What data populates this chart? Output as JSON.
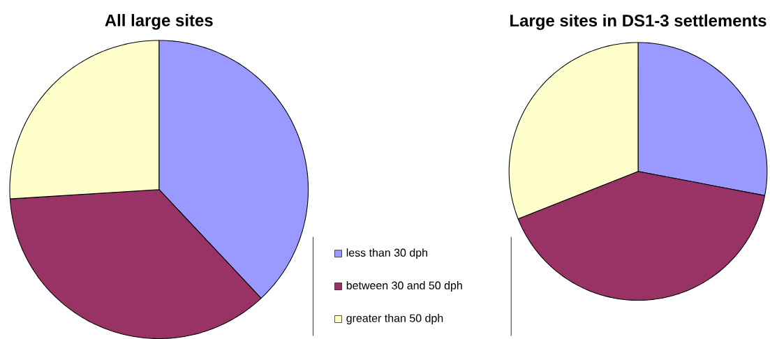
{
  "chart_data": [
    {
      "type": "pie",
      "title": "All large sites",
      "categories": [
        "less than 30 dph",
        "between 30 and 50 dph",
        "greater than 50 dph"
      ],
      "values": [
        38,
        36,
        26
      ],
      "colors": [
        "#9999ff",
        "#993366",
        "#ffffcc"
      ],
      "legend": "bottom right"
    },
    {
      "type": "pie",
      "title": "Large sites in DS1-3 settlements",
      "categories": [
        null,
        null,
        null
      ],
      "values": [
        28,
        41,
        31
      ],
      "colors": [
        "#9999ff",
        "#993366",
        "#ffffcc"
      ]
    }
  ]
}
